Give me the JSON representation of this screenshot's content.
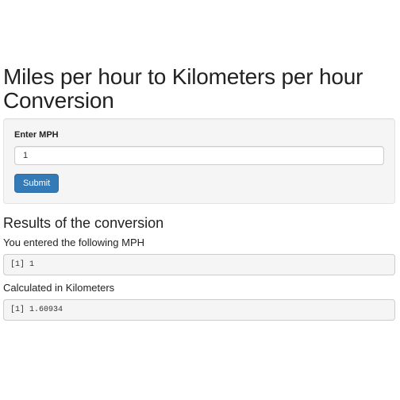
{
  "page": {
    "title": "Miles per hour to Kilometers per hour Conversion"
  },
  "form": {
    "input_label": "Enter MPH",
    "input_value": "1",
    "submit_label": "Submit"
  },
  "results": {
    "title": "Results of the conversion",
    "entered_label": "You entered the following MPH",
    "entered_output": "[1] 1",
    "calculated_label": "Calculated in Kilometers",
    "calculated_output": "[1] 1.60934"
  },
  "colors": {
    "button_bg": "#337ab7",
    "well_bg": "#f5f5f5"
  }
}
